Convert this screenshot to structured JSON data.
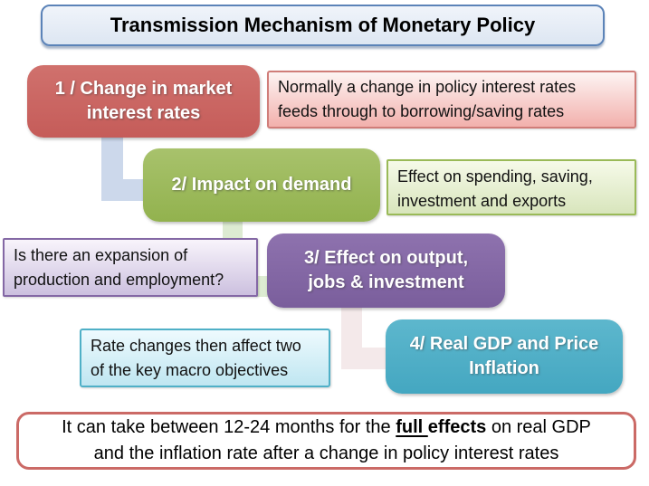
{
  "title": "Transmission Mechanism of Monetary Policy",
  "steps": {
    "step1": {
      "line1": "1 / Change in market",
      "line2": "interest rates"
    },
    "step2": {
      "line1": "2/ Impact on demand"
    },
    "step3": {
      "line1": "3/ Effect on output,",
      "line2": "jobs & investment"
    },
    "step4": {
      "line1": "4/ Real GDP and Price",
      "line2": "Inflation"
    }
  },
  "callouts": {
    "rates": {
      "line1": "Normally a change in policy interest rates",
      "line2": "feeds through to borrowing/saving rates"
    },
    "demand": {
      "line1": "Effect on spending, saving,",
      "line2": "investment and exports"
    },
    "output": {
      "line1": "Is there an expansion of",
      "line2": "production and employment?"
    },
    "macro": {
      "line1": "Rate changes then affect two",
      "line2": "of the key macro objectives"
    }
  },
  "footer": {
    "line1_pre": "It can take between 12-24 months for the ",
    "line1_full": "full ",
    "line1_effects": "effects",
    "line1_post": " on real GDP",
    "line2": "and the inflation rate after a change in policy interest rates"
  },
  "colors": {
    "step1_fill": "#c96360",
    "step2_fill": "#9bbb59",
    "step3_fill": "#8064a2",
    "step4_fill": "#4bacc6",
    "title_fill": "#e4ebf5",
    "title_border": "#5b83b8",
    "footer_border": "#cb6a66",
    "connector_blue": "#ccd8eb",
    "connector_green": "#ddebd2",
    "connector_pink": "#f4e9ea"
  }
}
